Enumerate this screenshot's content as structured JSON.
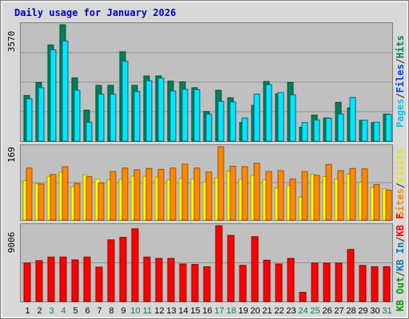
{
  "title": "Daily usage for January 2026",
  "y_labels": {
    "hits_max": "3570",
    "visits_max": "169",
    "kb_max": "9006"
  },
  "right_labels": {
    "panel1": [
      {
        "text": "Hits",
        "color": "#00805c"
      },
      {
        "text": "/",
        "color": "#404040"
      },
      {
        "text": "Files",
        "color": "#0040ff"
      },
      {
        "text": "/",
        "color": "#404040"
      },
      {
        "text": "Pages",
        "color": "#00c8e8"
      }
    ],
    "panel2": [
      {
        "text": "Visits",
        "color": "#e8e800"
      },
      {
        "text": "/",
        "color": "#404040"
      },
      {
        "text": "Sites",
        "color": "#ff8800"
      }
    ],
    "panel3": [
      {
        "text": "KB F",
        "color": "#ff0000"
      },
      {
        "text": "/",
        "color": "#404040"
      },
      {
        "text": "KB In",
        "color": "#0080c0"
      },
      {
        "text": "/",
        "color": "#404040"
      },
      {
        "text": "KB Out",
        "color": "#00a000"
      }
    ]
  },
  "colors": {
    "hits": "#00805c",
    "files": "#0040ff",
    "pages": "#00e8ff",
    "visits": "#ffff00",
    "sites": "#ff8800",
    "kbf": "#ff0000",
    "weekday_tick": "#000000",
    "weekend_tick": "#00805c",
    "panel_bg": "#c0c0c0",
    "frame_bg": "#d8d8d8",
    "title_color": "#0000c0"
  },
  "chart_data": {
    "type": "bar",
    "categories": [
      "1",
      "2",
      "3",
      "4",
      "5",
      "6",
      "7",
      "8",
      "9",
      "10",
      "11",
      "12",
      "13",
      "14",
      "15",
      "16",
      "17",
      "18",
      "19",
      "20",
      "21",
      "22",
      "23",
      "24",
      "25",
      "26",
      "27",
      "28",
      "29",
      "30",
      "31"
    ],
    "weekend_days": [
      "3",
      "4",
      "10",
      "11",
      "17",
      "18",
      "24",
      "25",
      "31"
    ],
    "panels": [
      {
        "name": "hits-files-pages",
        "ymax": 3570,
        "series": [
          {
            "name": "Hits",
            "values": [
              1400,
              1800,
              2950,
              3570,
              1940,
              950,
              1710,
              1710,
              2740,
              1710,
              2000,
              2000,
              1840,
              1820,
              1640,
              910,
              1560,
              1330,
              570,
              1100,
              1830,
              1450,
              1800,
              430,
              800,
              710,
              1190,
              1020,
              640,
              570,
              830
            ]
          },
          {
            "name": "Pages",
            "values": [
              1300,
              1640,
              2800,
              3070,
              1560,
              580,
              1440,
              1440,
              2450,
              1520,
              1850,
              1930,
              1540,
              1590,
              1580,
              830,
              1220,
              1200,
              710,
              1440,
              1730,
              1490,
              1420,
              570,
              650,
              700,
              830,
              1340,
              640,
              580,
              820
            ]
          },
          {
            "name": "Files",
            "values": [
              1300,
              1640,
              2800,
              3070,
              1560,
              580,
              1440,
              1440,
              2450,
              1520,
              1850,
              1930,
              1540,
              1590,
              1580,
              830,
              1220,
              1200,
              710,
              1440,
              1730,
              1490,
              1420,
              570,
              650,
              700,
              830,
              1340,
              640,
              580,
              820
            ]
          }
        ]
      },
      {
        "name": "visits-sites",
        "ymax": 169,
        "series": [
          {
            "name": "Visits",
            "values": [
              91,
              84,
              101,
              110,
              77,
              104,
              94,
              93,
              94,
              101,
              101,
              99,
              93,
              96,
              95,
              88,
              97,
              113,
              94,
              103,
              93,
              74,
              80,
              53,
              105,
              100,
              95,
              106,
              87,
              75,
              72
            ]
          },
          {
            "name": "Sites",
            "values": [
              120,
              83,
              105,
              123,
              84,
              100,
              85,
              112,
              120,
              116,
              119,
              117,
              120,
              129,
              120,
              111,
              169,
              124,
              123,
              131,
              112,
              114,
              95,
              112,
              103,
              128,
              114,
              119,
              118,
              82,
              69
            ]
          }
        ]
      },
      {
        "name": "kb-f",
        "ymax": 9006,
        "series": [
          {
            "name": "KB F",
            "values": [
              4560,
              4850,
              5280,
              5280,
              4940,
              5280,
              4080,
              7320,
              7620,
              8640,
              5280,
              5120,
              5120,
              4450,
              4400,
              4130,
              9006,
              7850,
              4300,
              7700,
              4900,
              4450,
              5120,
              1080,
              4560,
              4560,
              4560,
              6180,
              4280,
              4130,
              4130
            ]
          }
        ]
      }
    ],
    "xticks": [
      "1",
      "2",
      "3",
      "4",
      "5",
      "6",
      "7",
      "8",
      "9",
      "10",
      "11",
      "12",
      "13",
      "14",
      "15",
      "16",
      "17",
      "18",
      "19",
      "20",
      "21",
      "22",
      "23",
      "24",
      "25",
      "26",
      "27",
      "28",
      "29",
      "30",
      "31"
    ]
  }
}
